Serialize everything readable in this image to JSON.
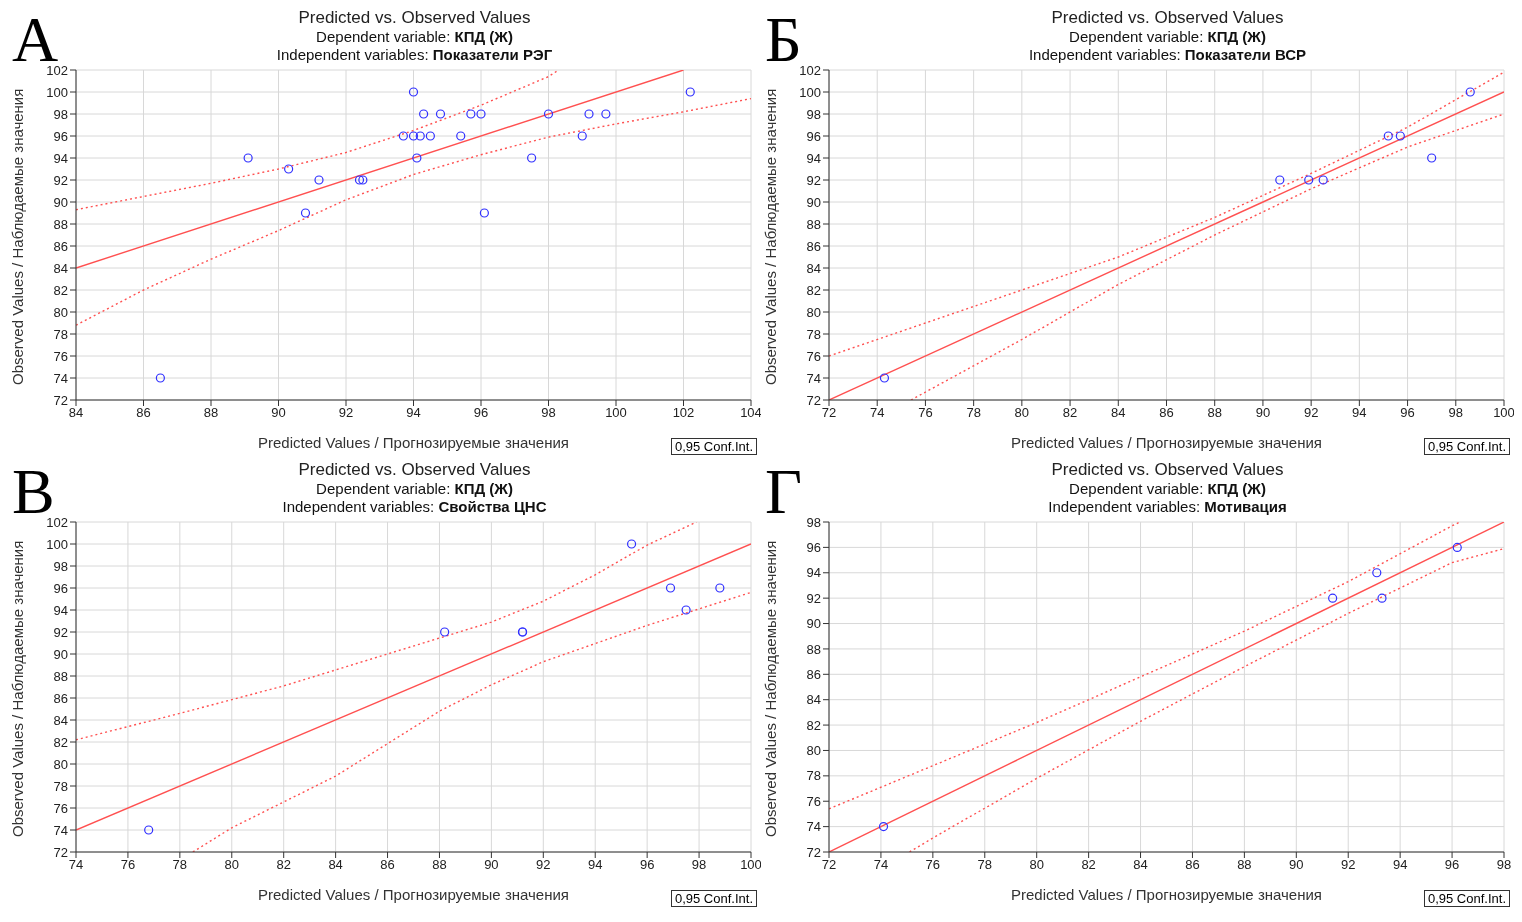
{
  "chart_data": [
    {
      "type": "scatter",
      "title": "Predicted vs. Observed Values",
      "subtitle": "Dependent variable: КПД (Ж)\nIndependent variables: Показатели РЭГ",
      "xlabel": "Predicted Values / Прогнозируемые значения",
      "ylabel": "Observed Values / Наблюдаемые значения",
      "xlim": [
        84,
        104
      ],
      "ylim": [
        72,
        102
      ],
      "xticks": [
        84,
        86,
        88,
        90,
        92,
        94,
        96,
        98,
        100,
        102,
        104
      ],
      "yticks": [
        72,
        74,
        76,
        78,
        80,
        82,
        84,
        86,
        88,
        90,
        92,
        94,
        96,
        98,
        100,
        102
      ],
      "grid": true,
      "annotations": [
        "А",
        "0,95 Conf.Int."
      ],
      "series": [
        {
          "type": "scatter",
          "marker": "circle",
          "color": "#3030ff",
          "x": [
            86.5,
            89.1,
            90.3,
            91.2,
            90.8,
            92.4,
            92.5,
            93.7,
            94.0,
            94.0,
            94.1,
            94.2,
            94.3,
            94.5,
            94.8,
            95.4,
            95.7,
            96.0,
            96.1,
            97.5,
            98.0,
            99.0,
            99.2,
            99.7,
            102.2
          ],
          "values": [
            74,
            94,
            93,
            92,
            89,
            92,
            92,
            96,
            100,
            96,
            94,
            96,
            98,
            96,
            98,
            96,
            98,
            98,
            89,
            94,
            98,
            96,
            98,
            98,
            100
          ]
        },
        {
          "type": "line",
          "line_style": "solid",
          "color": "#ff5050",
          "x": [
            84,
            102
          ],
          "values": [
            84,
            102
          ]
        },
        {
          "type": "line",
          "line_style": "dotted",
          "color": "#ff5050",
          "x": [
            84,
            86,
            88,
            90,
            92,
            94,
            96,
            98,
            98.3
          ],
          "values": [
            89.3,
            90.5,
            91.7,
            93.0,
            94.5,
            96.5,
            98.8,
            101.4,
            102
          ]
        },
        {
          "type": "line",
          "line_style": "dotted",
          "color": "#ff5050",
          "x": [
            84,
            86,
            88,
            90,
            92,
            94,
            96,
            98,
            100,
            102,
            104
          ],
          "values": [
            78.8,
            82.0,
            84.8,
            87.4,
            90.2,
            92.5,
            94.3,
            95.9,
            97.1,
            98.2,
            99.4
          ]
        }
      ]
    },
    {
      "type": "scatter",
      "title": "Predicted vs. Observed Values",
      "subtitle": "Dependent variable: КПД (Ж)\nIndependent variables: Показатели ВСР",
      "xlabel": "Predicted Values / Прогнозируемые значения",
      "ylabel": "Observed Values / Наблюдаемые значения",
      "xlim": [
        72,
        100
      ],
      "ylim": [
        72,
        102
      ],
      "xticks": [
        72,
        74,
        76,
        78,
        80,
        82,
        84,
        86,
        88,
        90,
        92,
        94,
        96,
        98,
        100
      ],
      "yticks": [
        72,
        74,
        76,
        78,
        80,
        82,
        84,
        86,
        88,
        90,
        92,
        94,
        96,
        98,
        100,
        102
      ],
      "grid": true,
      "annotations": [
        "Б",
        "0,95 Conf.Int."
      ],
      "series": [
        {
          "type": "scatter",
          "marker": "circle",
          "color": "#3030ff",
          "x": [
            74.3,
            90.7,
            91.9,
            92.5,
            95.2,
            95.7,
            97.0,
            98.6
          ],
          "values": [
            74,
            92,
            92,
            92,
            96,
            96,
            94,
            100
          ]
        },
        {
          "type": "line",
          "line_style": "solid",
          "color": "#ff5050",
          "x": [
            72,
            100
          ],
          "values": [
            72,
            100
          ]
        },
        {
          "type": "line",
          "line_style": "dotted",
          "color": "#ff5050",
          "x": [
            72,
            76,
            80,
            84,
            88,
            92,
            96,
            100
          ],
          "values": [
            76,
            79,
            82,
            85,
            88.6,
            92.6,
            96.8,
            101.8
          ]
        },
        {
          "type": "line",
          "line_style": "dotted",
          "color": "#ff5050",
          "x": [
            75.4,
            80,
            84,
            88,
            92,
            96,
            100
          ],
          "values": [
            72,
            77.5,
            82.5,
            87,
            91.2,
            95,
            98
          ]
        }
      ]
    },
    {
      "type": "scatter",
      "title": "Predicted vs. Observed Values",
      "subtitle": "Dependent variable: КПД (Ж)\nIndependent variables: Свойства ЦНС",
      "xlabel": "Predicted Values / Прогнозируемые значения",
      "ylabel": "Observed Values / Наблюдаемые значения",
      "xlim": [
        74,
        100
      ],
      "ylim": [
        72,
        102
      ],
      "xticks": [
        74,
        76,
        78,
        80,
        82,
        84,
        86,
        88,
        90,
        92,
        94,
        96,
        98,
        100
      ],
      "yticks": [
        72,
        74,
        76,
        78,
        80,
        82,
        84,
        86,
        88,
        90,
        92,
        94,
        96,
        98,
        100,
        102
      ],
      "grid": true,
      "annotations": [
        "В",
        "0,95 Conf.Int."
      ],
      "series": [
        {
          "type": "scatter",
          "marker": "circle",
          "color": "#3030ff",
          "x": [
            76.8,
            88.2,
            91.2,
            91.2,
            95.4,
            96.9,
            97.5,
            98.8
          ],
          "values": [
            74,
            92,
            92,
            92,
            100,
            96,
            94,
            96
          ]
        },
        {
          "type": "line",
          "line_style": "solid",
          "color": "#ff5050",
          "x": [
            74,
            100
          ],
          "values": [
            74,
            100
          ]
        },
        {
          "type": "line",
          "line_style": "dotted",
          "color": "#ff5050",
          "x": [
            74,
            78,
            82,
            86,
            90,
            92,
            94,
            96,
            97.9
          ],
          "values": [
            82.2,
            84.6,
            87.1,
            90.0,
            92.9,
            94.8,
            97.2,
            99.9,
            102
          ]
        },
        {
          "type": "line",
          "line_style": "dotted",
          "color": "#ff5050",
          "x": [
            78.5,
            80,
            84,
            88,
            90,
            92,
            96,
            100
          ],
          "values": [
            72,
            74.2,
            78.9,
            84.8,
            87.2,
            89.3,
            92.6,
            95.6
          ]
        }
      ]
    },
    {
      "type": "scatter",
      "title": "Predicted vs. Observed Values",
      "subtitle": "Dependent variable: КПД (Ж)\nIndependent variables: Мотивация",
      "xlabel": "Predicted Values / Прогнозируемые значения",
      "ylabel": "Observed Values / Наблюдаемые значения",
      "xlim": [
        72,
        98
      ],
      "ylim": [
        72,
        98
      ],
      "xticks": [
        72,
        74,
        76,
        78,
        80,
        82,
        84,
        86,
        88,
        90,
        92,
        94,
        96,
        98
      ],
      "yticks": [
        72,
        74,
        76,
        78,
        80,
        82,
        84,
        86,
        88,
        90,
        92,
        94,
        96,
        98
      ],
      "grid": true,
      "annotations": [
        "Г",
        "0,95 Conf.Int."
      ],
      "series": [
        {
          "type": "scatter",
          "marker": "circle",
          "color": "#3030ff",
          "x": [
            74.1,
            91.4,
            93.1,
            93.3,
            96.2
          ],
          "values": [
            74,
            92,
            94,
            92,
            96
          ]
        },
        {
          "type": "line",
          "line_style": "solid",
          "color": "#ff5050",
          "x": [
            72,
            98
          ],
          "values": [
            72,
            98
          ]
        },
        {
          "type": "line",
          "line_style": "dotted",
          "color": "#ff5050",
          "x": [
            72,
            76,
            80,
            84,
            88,
            92,
            96,
            96.3
          ],
          "values": [
            75.4,
            78.8,
            82.2,
            85.8,
            89.4,
            93.3,
            97.7,
            98
          ]
        },
        {
          "type": "line",
          "line_style": "dotted",
          "color": "#ff5050",
          "x": [
            75.1,
            76,
            80,
            84,
            88,
            92,
            96,
            98
          ],
          "values": [
            72,
            73.1,
            77.8,
            82.3,
            86.6,
            90.8,
            94.8,
            95.9
          ]
        }
      ]
    }
  ]
}
